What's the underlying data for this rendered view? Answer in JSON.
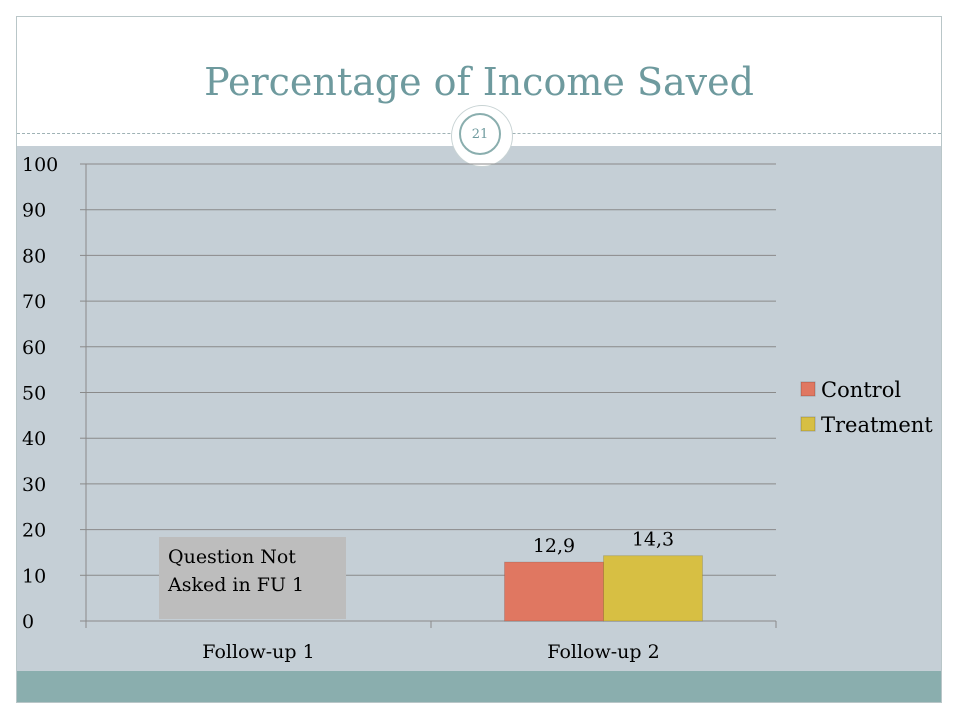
{
  "slide": {
    "title": "Percentage of Income Saved",
    "page_number": "21"
  },
  "colors": {
    "control": "#e07761",
    "treatment": "#d7bf43",
    "background": "#c5cfd6",
    "footer": "#8aaeae",
    "title": "#6e9a9e"
  },
  "chart_data": {
    "type": "bar",
    "title": "",
    "xlabel": "",
    "ylabel": "",
    "categories": [
      "Follow-up 1",
      "Follow-up 2"
    ],
    "series": [
      {
        "name": "Control",
        "values": [
          null,
          12.9
        ],
        "labels": [
          "",
          "12,9"
        ],
        "color": "#e07761"
      },
      {
        "name": "Treatment",
        "values": [
          null,
          14.3
        ],
        "labels": [
          "",
          "14,3"
        ],
        "color": "#d7bf43"
      }
    ],
    "ylim": [
      0,
      100
    ],
    "yticks": [
      0,
      10,
      20,
      30,
      40,
      50,
      60,
      70,
      80,
      90,
      100
    ],
    "grid": true,
    "legend_position": "right",
    "annotation": "Question Not Asked in FU 1"
  }
}
